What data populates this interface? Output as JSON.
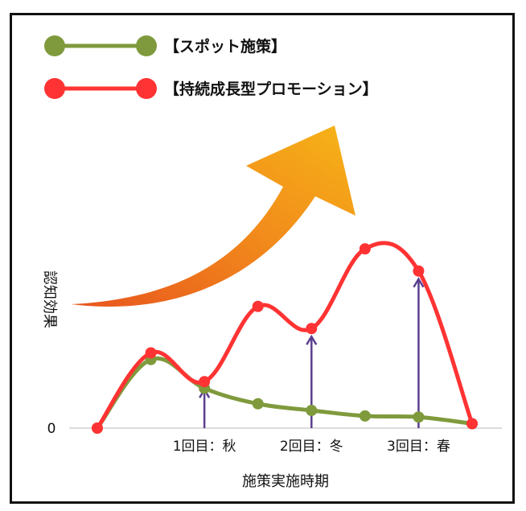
{
  "chart_data": {
    "type": "line",
    "xlabel": "施策実施時期",
    "ylabel": "認知効果",
    "y_tick_labels": [
      "0"
    ],
    "x_tick_labels": [
      {
        "label": "1回目：秋",
        "x": 2
      },
      {
        "label": "2回目：冬",
        "x": 4
      },
      {
        "label": "3回目：春",
        "x": 6
      }
    ],
    "x": [
      0,
      1,
      2,
      3,
      4,
      5,
      6,
      7
    ],
    "xlim": [
      -0.5,
      7.5
    ],
    "ylim": [
      0,
      10
    ],
    "markers_at": [
      2,
      4,
      6
    ],
    "grid": false,
    "legend_position": "top-left",
    "series": [
      {
        "name": "【スポット施策】",
        "color": "#7f9a3c",
        "values": [
          0,
          3.1,
          1.8,
          1.1,
          0.8,
          0.55,
          0.5,
          0.2
        ]
      },
      {
        "name": "【持続成長型プロモーション】",
        "color": "#ff3333",
        "values": [
          0,
          3.4,
          2.1,
          5.5,
          4.5,
          8.1,
          7.1,
          0.2
        ]
      }
    ],
    "marker_color": "#5b3f8f",
    "trend_arrow": true
  }
}
